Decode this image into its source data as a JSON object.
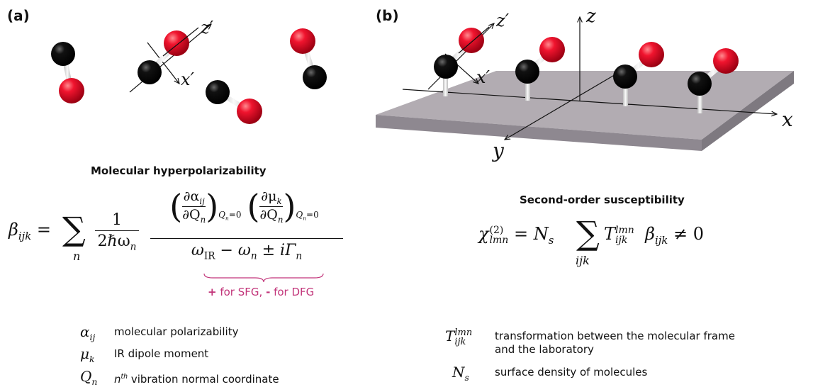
{
  "panels": {
    "a": {
      "label": "(a)"
    },
    "b": {
      "label": "(b)"
    }
  },
  "axes_a": {
    "z_prime": "z′",
    "x_prime": "x′"
  },
  "axes_b": {
    "z": "z",
    "x": "x",
    "y": "y",
    "z_prime": "z′",
    "x_prime": "x′"
  },
  "section_a": {
    "title": "Molecular hyperpolarizability"
  },
  "section_b": {
    "title": "Second-order susceptibility"
  },
  "equation_a": {
    "lhs": "β",
    "lhs_sub": "ijk",
    "sum_index": "n",
    "one": "1",
    "den_coef": "2ℏω",
    "den_sub": "n",
    "num_alpha": "∂α",
    "num_alpha_sub": "ij",
    "num_mu": "∂μ",
    "num_mu_sub": "k",
    "dQ": "∂Q",
    "dQ_sub": "n",
    "eval_sub": "Q",
    "eval_sub_n": "n",
    "eval_sub_val": "=0",
    "den_omega_ir": "ω",
    "den_ir_sub": "IR",
    "den_rest": " − ω",
    "den_rest_sub": "n",
    "den_pm": " ± iΓ",
    "den_gamma_sub": "n",
    "note_plus": "+",
    "note_sfg": " for SFG, ",
    "note_minus": "-",
    "note_dfg": " for DFG"
  },
  "equation_b": {
    "chi": "χ",
    "chi_sup": "(2)",
    "chi_sub": "lmn",
    "equals": "= N",
    "ns_sub": "s",
    "sum_index": "ijk",
    "T": "T",
    "T_sup": "lmn",
    "T_sub": "ijk",
    "beta": "β",
    "beta_sub": "ijk",
    "ne": "≠ 0"
  },
  "legend_a": [
    {
      "symbol": "α",
      "sub": "ij",
      "text": "molecular polarizability"
    },
    {
      "symbol": "μ",
      "sub": "k",
      "text": "IR dipole moment"
    },
    {
      "symbol": "Q",
      "sub": "n",
      "text_pre": "n",
      "text_sup": "th",
      "text": " vibration normal coordinate"
    }
  ],
  "legend_b": [
    {
      "symbol": "T",
      "sup": "lmn",
      "sub": "ijk",
      "text_line1": "transformation between the molecular frame",
      "text_line2": "and the laboratory"
    },
    {
      "symbol": "N",
      "sub": "s",
      "text": "surface density of molecules"
    }
  ],
  "colors": {
    "oxygen": "#e8102a",
    "carbon": "#050505",
    "bond": "#d9d9d9",
    "surface_top": "#aea8ae",
    "surface_side": "#8f8a90",
    "accent": "#c2357a"
  }
}
